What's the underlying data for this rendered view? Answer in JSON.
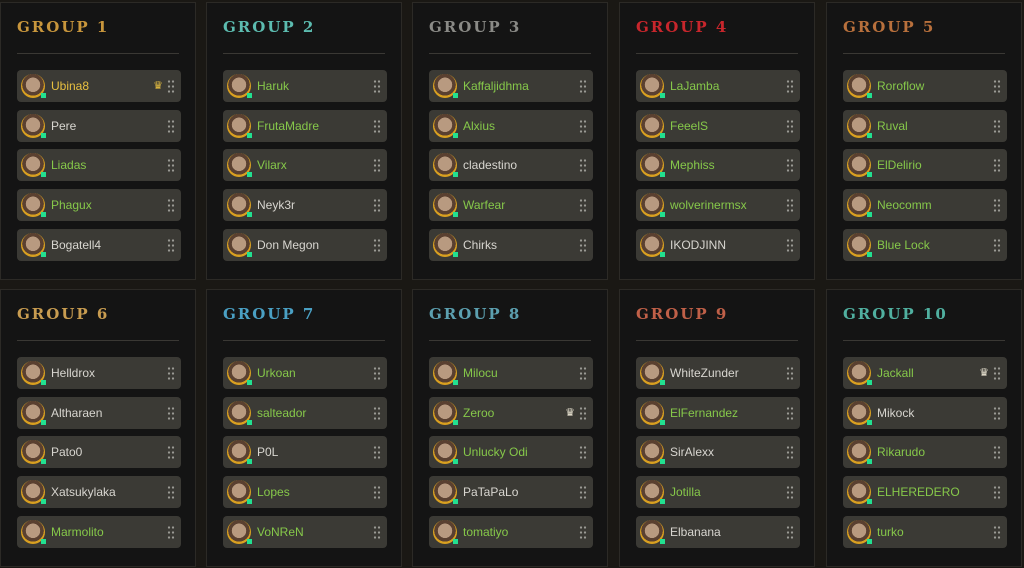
{
  "colors": {
    "online": "#22e090",
    "name_green": "#86c84a",
    "name_white": "#d8d6d0",
    "leader_gold": "#e8c040",
    "crown_white": "#f0ead8"
  },
  "groups": [
    {
      "title": "GROUP 1",
      "color": "#c8963c",
      "members": [
        {
          "name": "Ubina8",
          "style": "leader",
          "crown": "gold"
        },
        {
          "name": "Pere",
          "style": "white"
        },
        {
          "name": "Liadas",
          "style": "green"
        },
        {
          "name": "Phagux",
          "style": "green"
        },
        {
          "name": "Bogatell4",
          "style": "white"
        }
      ]
    },
    {
      "title": "GROUP 2",
      "color": "#5cbcb0",
      "members": [
        {
          "name": "Haruk",
          "style": "green"
        },
        {
          "name": "FrutaMadre",
          "style": "green"
        },
        {
          "name": "Vilarx",
          "style": "green"
        },
        {
          "name": "Neyk3r",
          "style": "white"
        },
        {
          "name": "Don Megon",
          "style": "white"
        }
      ]
    },
    {
      "title": "GROUP 3",
      "color": "#8a8a86",
      "members": [
        {
          "name": "Kaffaljidhma",
          "style": "green"
        },
        {
          "name": "Alxius",
          "style": "green"
        },
        {
          "name": "cladestino",
          "style": "white"
        },
        {
          "name": "Warfear",
          "style": "green"
        },
        {
          "name": "Chirks",
          "style": "white"
        }
      ]
    },
    {
      "title": "GROUP 4",
      "color": "#c8262c",
      "members": [
        {
          "name": "LaJamba",
          "style": "green"
        },
        {
          "name": "FeeelS",
          "style": "green"
        },
        {
          "name": "Mephiss",
          "style": "green"
        },
        {
          "name": "wolverinermsx",
          "style": "green"
        },
        {
          "name": "IKODJINN",
          "style": "white"
        }
      ]
    },
    {
      "title": "GROUP 5",
      "color": "#b8703c",
      "members": [
        {
          "name": "Roroflow",
          "style": "green"
        },
        {
          "name": "Ruval",
          "style": "green"
        },
        {
          "name": "ElDelirio",
          "style": "green"
        },
        {
          "name": "Neocomm",
          "style": "green"
        },
        {
          "name": "Blue Lock",
          "style": "green"
        }
      ]
    },
    {
      "title": "GROUP 6",
      "color": "#c89c50",
      "members": [
        {
          "name": "Helldrox",
          "style": "white"
        },
        {
          "name": "Altharaen",
          "style": "white"
        },
        {
          "name": "Pato0",
          "style": "white"
        },
        {
          "name": "Xatsukylaka",
          "style": "white"
        },
        {
          "name": "Marmolito",
          "style": "green"
        }
      ]
    },
    {
      "title": "GROUP 7",
      "color": "#4aa0c4",
      "members": [
        {
          "name": "Urkoan",
          "style": "green"
        },
        {
          "name": "salteador",
          "style": "green"
        },
        {
          "name": "P0L",
          "style": "white"
        },
        {
          "name": "Lopes",
          "style": "green"
        },
        {
          "name": "VoNReN",
          "style": "green"
        }
      ]
    },
    {
      "title": "GROUP 8",
      "color": "#5ca0b0",
      "members": [
        {
          "name": "Milocu",
          "style": "green"
        },
        {
          "name": "Zeroo",
          "style": "green",
          "crown": "white"
        },
        {
          "name": "Unlucky Odi",
          "style": "green"
        },
        {
          "name": "PaTaPaLo",
          "style": "white"
        },
        {
          "name": "tomatiyo",
          "style": "green"
        }
      ]
    },
    {
      "title": "GROUP 9",
      "color": "#c06048",
      "members": [
        {
          "name": "WhiteZunder",
          "style": "white"
        },
        {
          "name": "ElFernandez",
          "style": "green"
        },
        {
          "name": "SirAlexx",
          "style": "white"
        },
        {
          "name": "Jotilla",
          "style": "green"
        },
        {
          "name": "Elbanana",
          "style": "white"
        }
      ]
    },
    {
      "title": "GROUP 10",
      "color": "#50b0a0",
      "members": [
        {
          "name": "Jackall",
          "style": "green",
          "crown": "white"
        },
        {
          "name": "Mikock",
          "style": "white"
        },
        {
          "name": "Rikarudo",
          "style": "green"
        },
        {
          "name": "ELHEREDERO",
          "style": "green"
        },
        {
          "name": "turko",
          "style": "green"
        }
      ]
    }
  ],
  "icons": {
    "crown": "crown-icon",
    "drag": "drag-handle-icon",
    "status": "online-status-icon"
  },
  "crown_glyph": "♛"
}
